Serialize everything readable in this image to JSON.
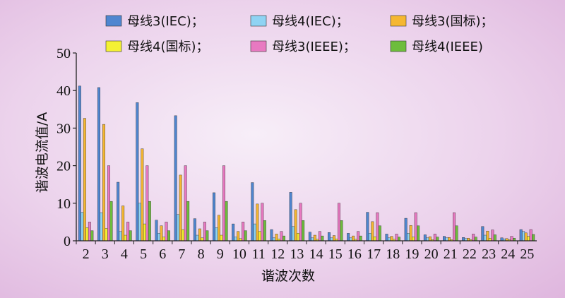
{
  "chart_data": {
    "type": "bar",
    "title": "",
    "xlabel": "谐波次数",
    "ylabel": "谐波电流值/A",
    "ylim": [
      0,
      50
    ],
    "yticks": [
      0,
      10,
      20,
      30,
      40,
      50
    ],
    "grid": false,
    "legend_position": "top",
    "categories": [
      "2",
      "3",
      "4",
      "5",
      "6",
      "7",
      "8",
      "9",
      "10",
      "11",
      "12",
      "13",
      "14",
      "15",
      "16",
      "17",
      "18",
      "19",
      "20",
      "21",
      "22",
      "23",
      "24",
      "25"
    ],
    "series": [
      {
        "name": "母线3(IEC)；",
        "color": "#4f86d0",
        "values": [
          41.2,
          40.8,
          15.6,
          36.8,
          5.5,
          33.3,
          5.9,
          12.8,
          4.5,
          15.5,
          3.0,
          12.9,
          2.3,
          2.2,
          2.0,
          7.6,
          1.8,
          6.0,
          1.6,
          1.2,
          0.9,
          3.8,
          0.8,
          3.0
        ]
      },
      {
        "name": "母线4(IEC)；",
        "color": "#8fd3f3",
        "values": [
          7.6,
          7.5,
          2.5,
          10.0,
          2.0,
          7.0,
          1.5,
          3.5,
          1.0,
          4.5,
          0.8,
          3.8,
          0.8,
          0.8,
          0.8,
          2.0,
          0.8,
          2.0,
          0.8,
          0.8,
          0.6,
          1.5,
          0.5,
          2.5
        ]
      },
      {
        "name": "母线3(国标)；",
        "color": "#f5b731",
        "values": [
          32.6,
          31.0,
          9.3,
          24.5,
          4.0,
          17.5,
          3.2,
          6.8,
          2.5,
          9.8,
          1.8,
          8.3,
          1.5,
          1.4,
          1.3,
          5.1,
          1.2,
          4.1,
          1.1,
          0.9,
          0.7,
          2.6,
          0.6,
          2.1
        ]
      },
      {
        "name": "母线4(国标)；",
        "color": "#f4f133",
        "values": [
          3.5,
          3.3,
          1.5,
          4.5,
          1.0,
          3.0,
          0.8,
          1.5,
          0.6,
          2.5,
          0.5,
          2.0,
          0.4,
          0.5,
          0.4,
          1.1,
          0.4,
          1.0,
          0.3,
          0.3,
          0.3,
          0.7,
          0.3,
          1.2
        ]
      },
      {
        "name": "母线3(IEEE)；",
        "color": "#e879c1",
        "values": [
          5.0,
          20.0,
          5.0,
          20.0,
          5.0,
          20.0,
          5.0,
          20.0,
          5.0,
          10.0,
          2.5,
          10.0,
          2.5,
          10.0,
          2.5,
          7.5,
          1.8,
          7.5,
          1.8,
          7.5,
          1.8,
          2.9,
          1.2,
          3.0
        ]
      },
      {
        "name": "母线4(IEEE)",
        "color": "#6dbd3c",
        "values": [
          2.7,
          10.5,
          2.7,
          10.5,
          2.7,
          10.5,
          2.7,
          10.5,
          2.7,
          5.4,
          1.3,
          5.4,
          1.3,
          5.4,
          1.3,
          4.0,
          1.0,
          4.0,
          1.0,
          4.0,
          1.0,
          1.6,
          0.7,
          1.7
        ]
      }
    ]
  }
}
